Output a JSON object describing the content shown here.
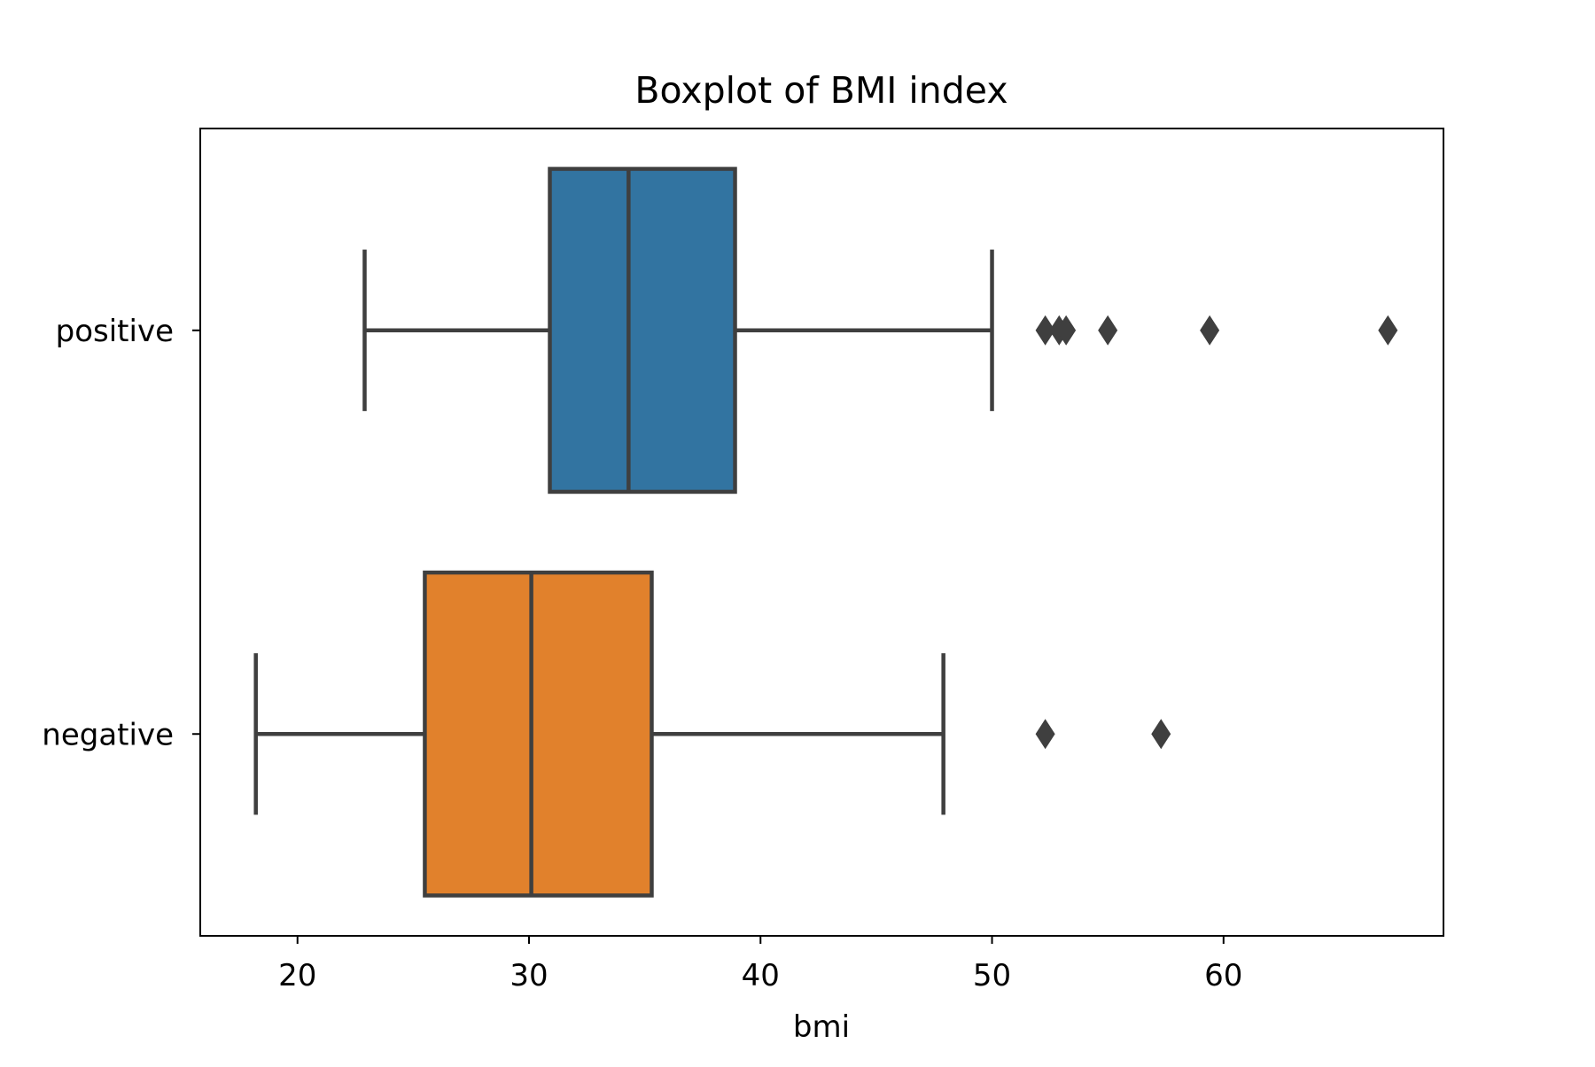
{
  "chart_data": {
    "type": "boxplot",
    "orientation": "horizontal",
    "title": "Boxplot of BMI index",
    "xlabel": "bmi",
    "ylabel": "",
    "xlim": [
      15.8,
      69.5
    ],
    "xticks": [
      20,
      30,
      40,
      50,
      60
    ],
    "grid": false,
    "legend": false,
    "categories": [
      "positive",
      "negative"
    ],
    "series": [
      {
        "category": "positive",
        "color": "#3274a1",
        "whisker_low": 22.9,
        "q1": 30.9,
        "median": 34.3,
        "q3": 38.9,
        "whisker_high": 50.0,
        "outliers": [
          52.3,
          52.9,
          53.2,
          55.0,
          59.4,
          67.1
        ]
      },
      {
        "category": "negative",
        "color": "#e1812c",
        "whisker_low": 18.2,
        "q1": 25.5,
        "median": 30.1,
        "q3": 35.3,
        "whisker_high": 47.9,
        "outliers": [
          52.3,
          57.3
        ]
      }
    ]
  }
}
